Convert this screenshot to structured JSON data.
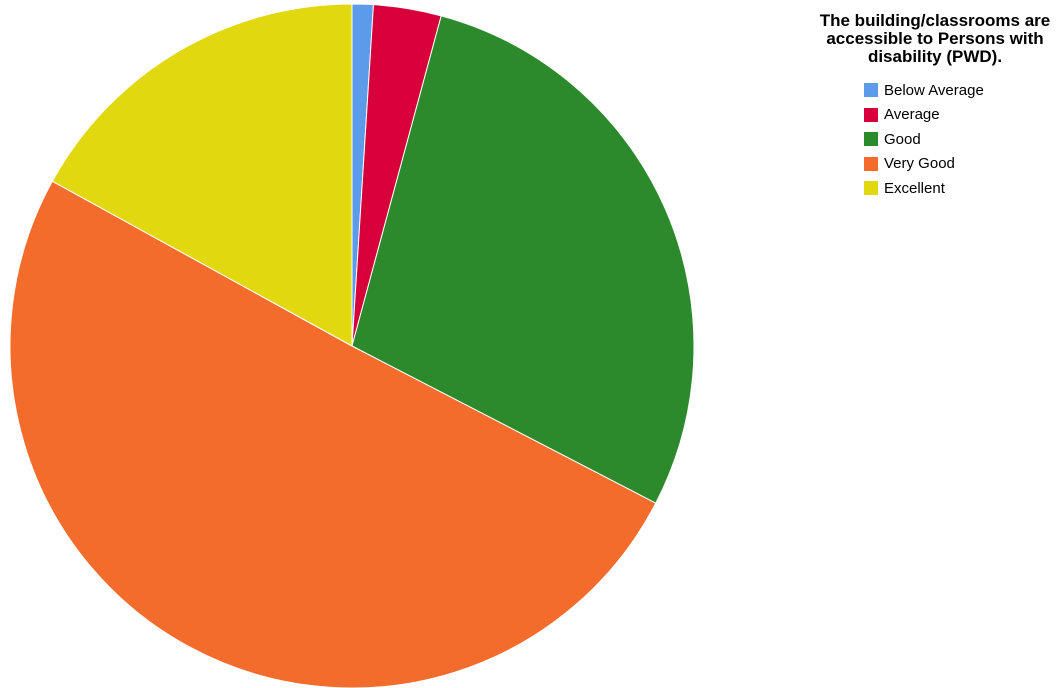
{
  "chart_data": {
    "type": "pie",
    "title": "The building/classrooms are accessible to Persons with disability (PWD).",
    "categories": [
      "Below Average",
      "Average",
      "Good",
      "Very Good",
      "Excellent"
    ],
    "values": [
      1.0,
      3.2,
      28.4,
      50.4,
      17.0
    ],
    "colors": [
      "#5b9bea",
      "#d7003a",
      "#2c8a2c",
      "#f36c2c",
      "#e2d810"
    ],
    "legend_position": "top-right",
    "start_angle_deg": 0,
    "direction": "clockwise"
  }
}
